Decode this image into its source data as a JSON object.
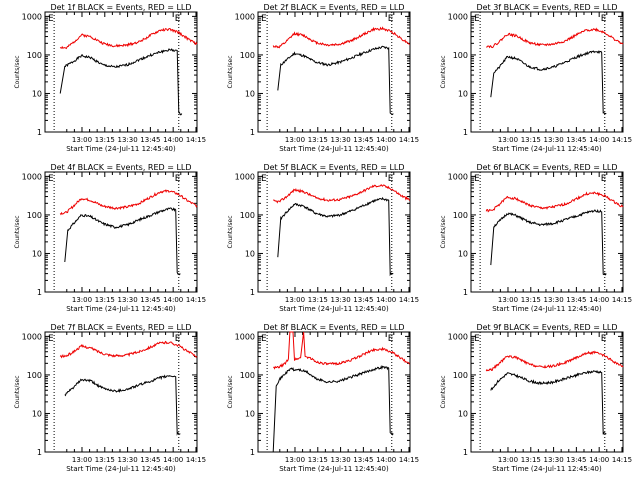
{
  "colors": {
    "events": "#000000",
    "lld": "#ee0000",
    "axis": "#000000"
  },
  "shared": {
    "xlabel": "Start Time (24-Jul-11 12:45:40)",
    "ylabel": "Counts/sec",
    "x_tick_labels": [
      "13:00",
      "13:15",
      "13:30",
      "13:45",
      "14:00",
      "14:15"
    ],
    "y_tick_labels": [
      "1",
      "10",
      "100",
      "1000"
    ],
    "marker_label": "E"
  },
  "chart_data": [
    {
      "type": "line",
      "title": "Det 1f BLACK = Events, RED = LLD",
      "series": [
        {
          "name": "Events",
          "color": "#000000",
          "x": [
            0,
            3,
            8,
            14,
            20,
            28,
            36,
            44,
            52,
            60,
            66,
            72,
            77,
            78,
            80
          ],
          "y": [
            10,
            50,
            65,
            95,
            85,
            55,
            48,
            55,
            75,
            100,
            120,
            135,
            130,
            3,
            3
          ]
        },
        {
          "name": "LLD",
          "color": "#ee0000",
          "x": [
            0,
            4,
            8,
            14,
            20,
            28,
            36,
            44,
            52,
            60,
            66,
            72,
            78,
            84,
            90
          ],
          "y": [
            160,
            150,
            200,
            330,
            300,
            200,
            170,
            180,
            220,
            330,
            440,
            460,
            380,
            260,
            190
          ]
        }
      ]
    },
    {
      "type": "line",
      "title": "Det 2f BLACK = Events, RED = LLD",
      "series": [
        {
          "name": "Events",
          "color": "#000000",
          "x": [
            3,
            5,
            8,
            14,
            20,
            28,
            36,
            44,
            52,
            60,
            66,
            72,
            76,
            77,
            79
          ],
          "y": [
            12,
            55,
            70,
            110,
            95,
            65,
            55,
            65,
            85,
            115,
            140,
            160,
            150,
            3,
            3
          ]
        },
        {
          "name": "LLD",
          "color": "#ee0000",
          "x": [
            0,
            4,
            8,
            14,
            20,
            28,
            36,
            44,
            52,
            60,
            66,
            72,
            78,
            84,
            90
          ],
          "y": [
            170,
            160,
            210,
            360,
            320,
            210,
            180,
            190,
            240,
            350,
            460,
            480,
            400,
            270,
            190
          ]
        }
      ]
    },
    {
      "type": "line",
      "title": "Det 3f BLACK = Events, RED = LLD",
      "series": [
        {
          "name": "Events",
          "color": "#000000",
          "x": [
            3,
            5,
            8,
            14,
            20,
            28,
            36,
            44,
            52,
            60,
            66,
            72,
            76,
            77,
            79
          ],
          "y": [
            8,
            35,
            45,
            90,
            80,
            50,
            42,
            48,
            65,
            90,
            110,
            125,
            115,
            3,
            3
          ]
        },
        {
          "name": "LLD",
          "color": "#ee0000",
          "x": [
            0,
            4,
            8,
            14,
            20,
            28,
            36,
            44,
            52,
            60,
            66,
            72,
            78,
            84,
            90
          ],
          "y": [
            170,
            165,
            210,
            350,
            310,
            210,
            180,
            190,
            230,
            340,
            440,
            460,
            380,
            260,
            190
          ]
        }
      ]
    },
    {
      "type": "line",
      "title": "Det 4f BLACK = Events, RED = LLD",
      "series": [
        {
          "name": "Events",
          "color": "#000000",
          "x": [
            3,
            5,
            8,
            14,
            20,
            28,
            36,
            44,
            52,
            60,
            66,
            72,
            76,
            77,
            79
          ],
          "y": [
            6,
            40,
            55,
            100,
            90,
            60,
            48,
            55,
            75,
            100,
            125,
            145,
            135,
            3,
            3
          ]
        },
        {
          "name": "LLD",
          "color": "#ee0000",
          "x": [
            0,
            4,
            8,
            14,
            20,
            28,
            36,
            44,
            52,
            60,
            66,
            72,
            78,
            84,
            90
          ],
          "y": [
            110,
            115,
            160,
            270,
            240,
            170,
            150,
            160,
            200,
            300,
            400,
            420,
            340,
            230,
            170
          ]
        }
      ]
    },
    {
      "type": "line",
      "title": "Det 5f BLACK = Events, RED = LLD",
      "series": [
        {
          "name": "Events",
          "color": "#000000",
          "x": [
            3,
            5,
            8,
            14,
            20,
            28,
            36,
            44,
            52,
            60,
            66,
            72,
            76,
            77,
            79
          ],
          "y": [
            8,
            80,
            110,
            190,
            170,
            110,
            90,
            100,
            130,
            180,
            230,
            260,
            240,
            3,
            3
          ]
        },
        {
          "name": "LLD",
          "color": "#ee0000",
          "x": [
            0,
            4,
            8,
            14,
            20,
            28,
            36,
            44,
            52,
            60,
            66,
            72,
            78,
            84,
            90
          ],
          "y": [
            230,
            220,
            280,
            450,
            400,
            280,
            240,
            250,
            310,
            430,
            560,
            580,
            470,
            320,
            240
          ]
        }
      ]
    },
    {
      "type": "line",
      "title": "Det 6f BLACK = Events, RED = LLD",
      "series": [
        {
          "name": "Events",
          "color": "#000000",
          "x": [
            3,
            5,
            8,
            14,
            20,
            28,
            36,
            44,
            52,
            60,
            66,
            72,
            76,
            77,
            79
          ],
          "y": [
            5,
            50,
            65,
            110,
            95,
            65,
            55,
            60,
            75,
            95,
            115,
            130,
            120,
            3,
            3
          ]
        },
        {
          "name": "LLD",
          "color": "#ee0000",
          "x": [
            0,
            4,
            8,
            14,
            20,
            28,
            36,
            44,
            52,
            60,
            66,
            72,
            78,
            84,
            90
          ],
          "y": [
            130,
            130,
            180,
            290,
            260,
            180,
            150,
            160,
            190,
            270,
            350,
            370,
            310,
            220,
            160
          ]
        }
      ]
    },
    {
      "type": "line",
      "title": "Det 7f BLACK = Events, RED = LLD",
      "series": [
        {
          "name": "Events",
          "color": "#000000",
          "x": [
            3,
            5,
            8,
            14,
            20,
            28,
            36,
            44,
            52,
            60,
            66,
            72,
            76,
            77,
            79
          ],
          "y": [
            30,
            35,
            45,
            75,
            70,
            45,
            38,
            42,
            55,
            70,
            85,
            95,
            90,
            3,
            3
          ]
        },
        {
          "name": "LLD",
          "color": "#ee0000",
          "x": [
            0,
            4,
            8,
            14,
            20,
            28,
            36,
            44,
            52,
            60,
            66,
            72,
            78,
            84,
            90
          ],
          "y": [
            300,
            310,
            380,
            560,
            500,
            360,
            310,
            330,
            400,
            540,
            680,
            700,
            580,
            400,
            300
          ]
        }
      ]
    },
    {
      "type": "line",
      "title": "Det 8f BLACK = Events, RED = LLD",
      "series": [
        {
          "name": "Events",
          "color": "#000000",
          "x": [
            0,
            2,
            4,
            8,
            12,
            14,
            16,
            22,
            28,
            36,
            44,
            52,
            60,
            66,
            72,
            76,
            77,
            79
          ],
          "y": [
            1,
            55,
            75,
            110,
            150,
            130,
            140,
            120,
            80,
            65,
            70,
            90,
            115,
            140,
            160,
            150,
            3,
            3
          ]
        },
        {
          "name": "LLD",
          "color": "#ee0000",
          "x": [
            0,
            4,
            8,
            10,
            11,
            13,
            14,
            18,
            20,
            21,
            24,
            28,
            36,
            44,
            52,
            60,
            66,
            72,
            78,
            84,
            90
          ],
          "y": [
            150,
            160,
            200,
            260,
            1500,
            1500,
            250,
            280,
            1500,
            300,
            280,
            220,
            190,
            200,
            250,
            350,
            450,
            470,
            390,
            270,
            190
          ]
        }
      ]
    },
    {
      "type": "line",
      "title": "Det 9f BLACK = Events, RED = LLD",
      "series": [
        {
          "name": "Events",
          "color": "#000000",
          "x": [
            3,
            5,
            8,
            14,
            20,
            28,
            36,
            44,
            52,
            60,
            66,
            72,
            76,
            77,
            79
          ],
          "y": [
            40,
            50,
            70,
            110,
            95,
            70,
            60,
            65,
            80,
            100,
            115,
            125,
            115,
            3,
            3
          ]
        },
        {
          "name": "LLD",
          "color": "#ee0000",
          "x": [
            0,
            4,
            8,
            14,
            20,
            28,
            36,
            44,
            52,
            60,
            66,
            72,
            78,
            84,
            90
          ],
          "y": [
            130,
            140,
            190,
            310,
            280,
            190,
            160,
            170,
            210,
            290,
            370,
            380,
            310,
            220,
            160
          ]
        }
      ]
    }
  ],
  "axes": {
    "x_range_minutes": [
      -10,
      90
    ],
    "x_tick_minutes": [
      14.33,
      29.33,
      44.33,
      59.33,
      74.33,
      89.33
    ],
    "y_range": [
      1,
      1000
    ],
    "y_scale": "log",
    "dotted_marker_minutes": [
      -4,
      78
    ]
  }
}
